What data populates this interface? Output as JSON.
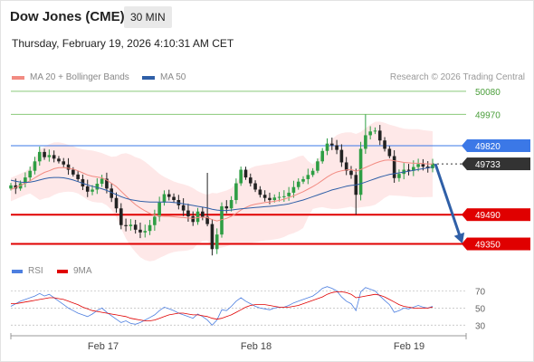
{
  "header": {
    "title": "Dow Jones (CME)",
    "interval": "30 MIN",
    "timestamp": "Thursday, February 19, 2026 4:10:31 AM CET"
  },
  "legend": {
    "ma20_label": "MA 20 + Bollinger Bands",
    "ma50_label": "MA 50",
    "ma20_color": "#f28b82",
    "ma50_color": "#2f5fa7",
    "attribution": "Research © 2026 Trading Central"
  },
  "rsi_legend": {
    "rsi_label": "RSI",
    "ma9_label": "9MA",
    "rsi_color": "#4d7fe0",
    "ma9_color": "#e00000"
  },
  "chart_data": [
    {
      "type": "line",
      "title": "",
      "x_ticks": [
        "Feb 17",
        "Feb 18",
        "Feb 19"
      ],
      "ylim": [
        49270,
        50110
      ],
      "levels": [
        {
          "value": 50080,
          "label": "50080",
          "style": "target",
          "color": "#8ac97a"
        },
        {
          "value": 49970,
          "label": "49970",
          "style": "target",
          "color": "#8ac97a"
        },
        {
          "value": 49820,
          "label": "49820",
          "style": "pivot-resistance",
          "color": "#3b78e7"
        },
        {
          "value": 49733,
          "label": "49733",
          "style": "last-price",
          "color": "#333333"
        },
        {
          "value": 49490,
          "label": "49490",
          "style": "support",
          "color": "#e00000"
        },
        {
          "value": 49350,
          "label": "49350",
          "style": "support",
          "color": "#e00000"
        }
      ],
      "close": [
        49630,
        49615,
        49640,
        49668,
        49700,
        49745,
        49790,
        49765,
        49775,
        49758,
        49745,
        49730,
        49705,
        49682,
        49660,
        49625,
        49600,
        49610,
        49638,
        49662,
        49615,
        49570,
        49520,
        49440,
        49435,
        49442,
        49418,
        49405,
        49412,
        49440,
        49480,
        49548,
        49588,
        49575,
        49560,
        49535,
        49510,
        49482,
        49455,
        49505,
        49480,
        49445,
        49325,
        49395,
        49530,
        49520,
        49560,
        49640,
        49705,
        49668,
        49640,
        49610,
        49585,
        49570,
        49560,
        49572,
        49575,
        49578,
        49595,
        49622,
        49648,
        49660,
        49680,
        49700,
        49745,
        49795,
        49830,
        49822,
        49800,
        49740,
        49700,
        49680,
        49585,
        49805,
        49870,
        49888,
        49892,
        49845,
        49805,
        49770,
        49665,
        49685,
        49705,
        49700,
        49718,
        49732,
        49720,
        49712,
        49733
      ],
      "ma20": [
        49610,
        49620,
        49630,
        49640,
        49652,
        49666,
        49680,
        49692,
        49700,
        49710,
        49715,
        49715,
        49712,
        49708,
        49700,
        49690,
        49680,
        49674,
        49670,
        49666,
        49655,
        49640,
        49624,
        49602,
        49580,
        49558,
        49538,
        49522,
        49508,
        49496,
        49488,
        49484,
        49482,
        49482,
        49480,
        49478,
        49476,
        49474,
        49472,
        49476,
        49478,
        49476,
        49466,
        49460,
        49466,
        49472,
        49482,
        49496,
        49512,
        49524,
        49534,
        49540,
        49544,
        49548,
        49550,
        49554,
        49558,
        49564,
        49572,
        49580,
        49590,
        49600,
        49612,
        49624,
        49638,
        49654,
        49670,
        49684,
        49694,
        49700,
        49704,
        49706,
        49698,
        49706,
        49716,
        49726,
        49736,
        49744,
        49750,
        49752,
        49748,
        49744,
        49740,
        49738,
        49736,
        49736,
        49734,
        49733,
        49732
      ],
      "ma50": [
        49655,
        49650,
        49646,
        49644,
        49646,
        49650,
        49656,
        49662,
        49666,
        49668,
        49668,
        49666,
        49662,
        49656,
        49648,
        49640,
        49632,
        49626,
        49620,
        49614,
        49606,
        49596,
        49586,
        49576,
        49568,
        49562,
        49558,
        49554,
        49552,
        49550,
        49550,
        49550,
        49550,
        49550,
        49548,
        49546,
        49542,
        49538,
        49534,
        49530,
        49526,
        49522,
        49516,
        49512,
        49510,
        49510,
        49512,
        49515,
        49518,
        49520,
        49522,
        49524,
        49526,
        49528,
        49530,
        49532,
        49535,
        49538,
        49542,
        49548,
        49554,
        49560,
        49568,
        49576,
        49584,
        49592,
        49600,
        49608,
        49614,
        49620,
        49626,
        49630,
        49632,
        49638,
        49646,
        49654,
        49662,
        49670,
        49676,
        49682,
        49686,
        49690,
        49694,
        49698,
        49702,
        49706,
        49710,
        49714,
        49718
      ],
      "forecast_arrow": {
        "from": 49733,
        "to": 49350
      }
    },
    {
      "type": "line",
      "title": "",
      "ylim": [
        25,
        80
      ],
      "yticks": [
        30,
        50,
        70
      ],
      "series": [
        {
          "name": "RSI",
          "values": [
            52,
            55,
            58,
            60,
            62,
            64,
            67,
            64,
            66,
            62,
            58,
            54,
            50,
            47,
            44,
            42,
            40,
            43,
            47,
            50,
            45,
            41,
            37,
            33,
            35,
            32,
            31,
            33,
            36,
            39,
            42,
            47,
            51,
            49,
            47,
            44,
            42,
            40,
            38,
            43,
            40,
            36,
            30,
            36,
            48,
            47,
            52,
            58,
            62,
            58,
            55,
            52,
            50,
            49,
            48,
            50,
            51,
            51,
            53,
            56,
            58,
            60,
            62,
            64,
            68,
            73,
            75,
            73,
            70,
            63,
            58,
            55,
            47,
            69,
            74,
            72,
            70,
            64,
            59,
            54,
            45,
            47,
            50,
            49,
            51,
            53,
            51,
            50,
            52
          ]
        },
        {
          "name": "9MA",
          "values": [
            55,
            55,
            56,
            57,
            58,
            59,
            60,
            61,
            62,
            62,
            61,
            60,
            58,
            56,
            54,
            51,
            49,
            47,
            46,
            45,
            44,
            43,
            42,
            41,
            40,
            38,
            37,
            36,
            35,
            35,
            36,
            38,
            40,
            42,
            43,
            44,
            44,
            43,
            42,
            42,
            41,
            40,
            38,
            37,
            38,
            40,
            42,
            45,
            48,
            51,
            53,
            54,
            54,
            54,
            53,
            52,
            51,
            51,
            51,
            52,
            53,
            55,
            57,
            59,
            61,
            63,
            66,
            68,
            69,
            69,
            68,
            66,
            62,
            63,
            64,
            65,
            66,
            65,
            63,
            60,
            57,
            54,
            52,
            51,
            50,
            50,
            50,
            50,
            51
          ]
        }
      ]
    }
  ]
}
